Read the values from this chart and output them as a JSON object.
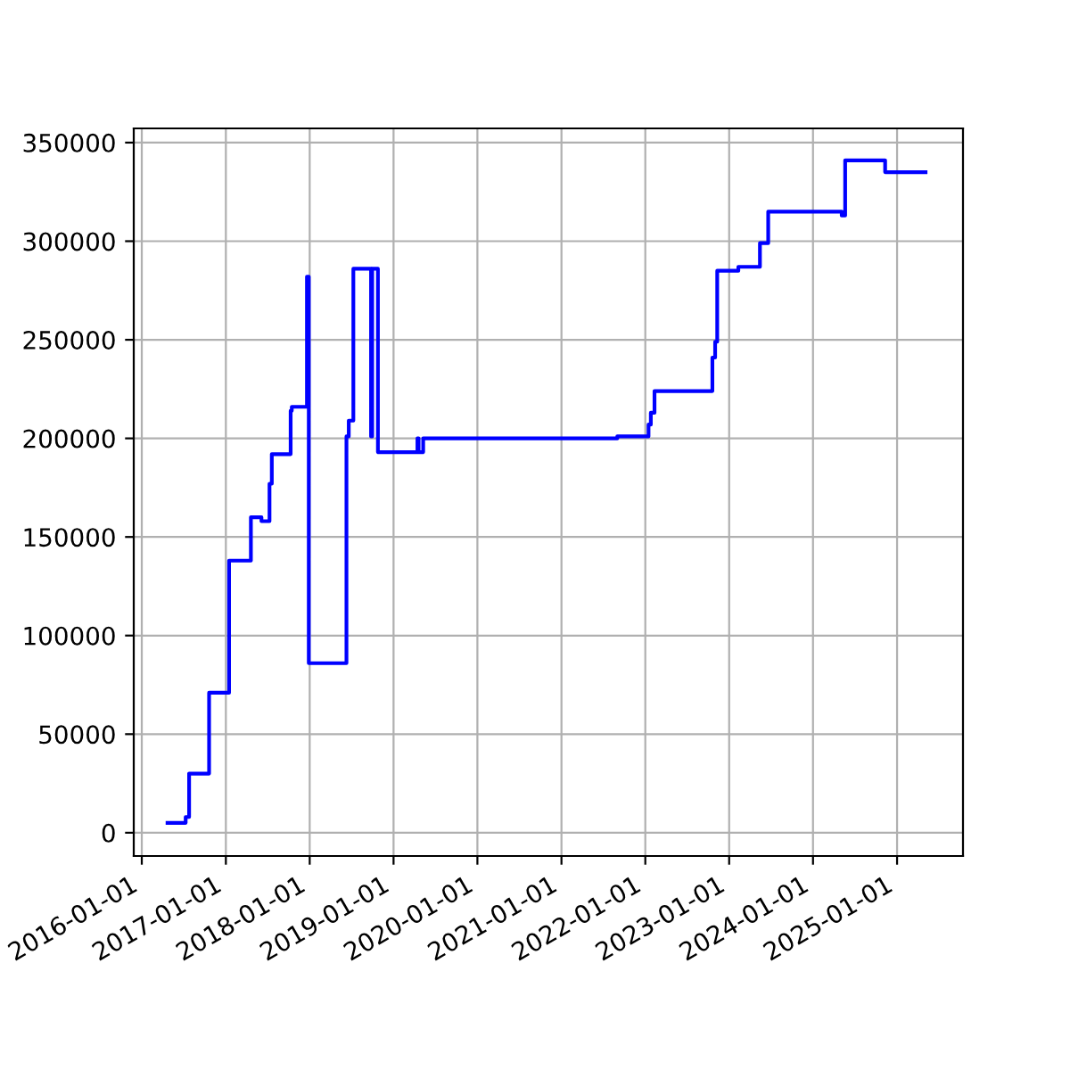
{
  "chart_data": {
    "type": "step",
    "grid": true,
    "x": [
      "2016-04-22",
      "2016-07-10",
      "2016-07-25",
      "2016-10-20",
      "2017-01-15",
      "2017-04-20",
      "2017-06-05",
      "2017-07-10",
      "2017-07-20",
      "2017-10-10",
      "2017-10-15",
      "2017-12-20",
      "2017-12-28",
      "2018-06-10",
      "2018-06-20",
      "2018-07-10",
      "2018-07-27",
      "2018-09-25",
      "2018-09-30",
      "2018-10-05",
      "2018-10-25",
      "2019-04-15",
      "2019-04-20",
      "2019-05-10",
      "2021-09-01",
      "2022-01-15",
      "2022-01-25",
      "2022-02-10",
      "2022-10-20",
      "2022-11-01",
      "2022-11-10",
      "2023-02-10",
      "2023-05-15",
      "2023-06-20",
      "2024-05-05",
      "2024-05-20",
      "2024-11-10",
      "2025-05-05"
    ],
    "series": [
      {
        "color": "#0000ff",
        "values": [
          5000,
          8000,
          30000,
          71000,
          138000,
          160000,
          158000,
          177000,
          192000,
          214000,
          216000,
          282000,
          86000,
          201000,
          209000,
          286000,
          286000,
          201000,
          286000,
          286000,
          193000,
          200000,
          193000,
          200000,
          201000,
          207000,
          213000,
          224000,
          241000,
          249000,
          285000,
          287000,
          299000,
          315000,
          313000,
          341000,
          335000,
          335000
        ]
      }
    ],
    "xlim": [
      "2015-11-27",
      "2025-10-15"
    ],
    "xticks": [
      "2016-01-01",
      "2017-01-01",
      "2018-01-01",
      "2019-01-01",
      "2020-01-01",
      "2021-01-01",
      "2022-01-01",
      "2023-01-01",
      "2024-01-01",
      "2025-01-01"
    ],
    "ylim": [
      -11800,
      357200
    ],
    "yticks": [
      0,
      50000,
      100000,
      150000,
      200000,
      250000,
      300000,
      350000
    ]
  }
}
